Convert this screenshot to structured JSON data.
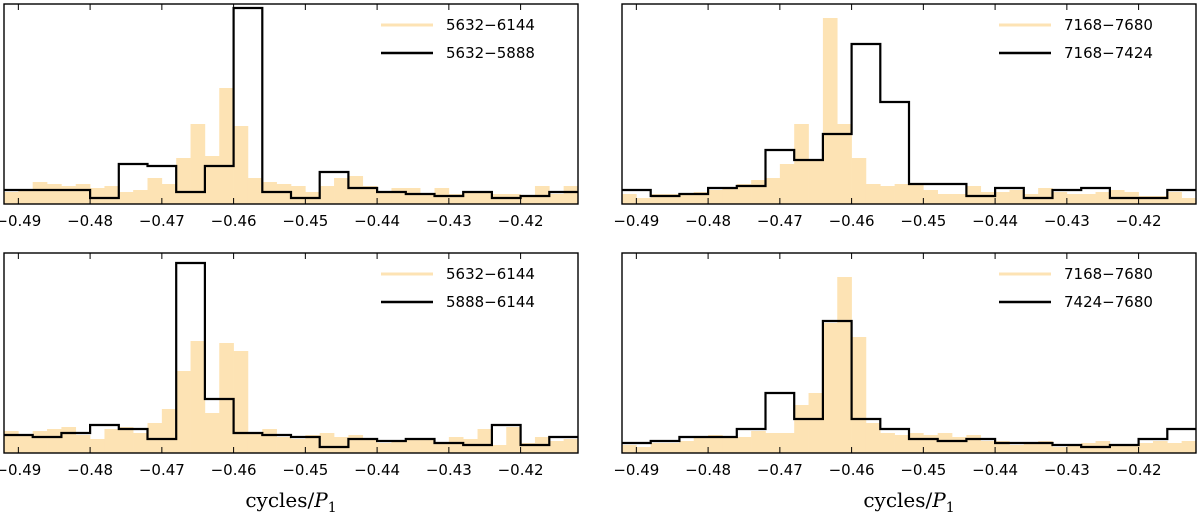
{
  "figure": {
    "x_axis_label": {
      "text": "cycles/",
      "symbol": "P",
      "subscript": "1"
    }
  },
  "chart_data": [
    {
      "type": "histogram",
      "panel": "top-left",
      "xlim": [
        -0.492,
        -0.412
      ],
      "ylim": [
        0,
        1
      ],
      "xticks": [
        -0.49,
        -0.48,
        -0.47,
        -0.46,
        -0.45,
        -0.44,
        -0.43,
        -0.42
      ],
      "xtick_labels": [
        "−0.49",
        "−0.48",
        "−0.47",
        "−0.46",
        "−0.45",
        "−0.44",
        "−0.43",
        "−0.42"
      ],
      "show_xlabel": false,
      "legend_position": "top-right",
      "series": [
        {
          "name": "5632−6144",
          "style": "filled",
          "color": "#fde3b4",
          "bin_start": -0.492,
          "bin_width": 0.002,
          "values": [
            0.06,
            0.07,
            0.11,
            0.1,
            0.09,
            0.1,
            0.08,
            0.09,
            0.06,
            0.07,
            0.13,
            0.1,
            0.23,
            0.4,
            0.24,
            0.58,
            0.39,
            0.13,
            0.11,
            0.1,
            0.09,
            0.06,
            0.09,
            0.13,
            0.14,
            0.09,
            0.06,
            0.08,
            0.08,
            0.05,
            0.08,
            0.05,
            0.06,
            0.06,
            0.05,
            0.05,
            0.04,
            0.09,
            0.05,
            0.09
          ]
        },
        {
          "name": "5632−5888",
          "style": "step",
          "color": "#000000",
          "bin_start": -0.492,
          "bin_width": 0.004,
          "values": [
            0.07,
            0.07,
            0.07,
            0.03,
            0.2,
            0.19,
            0.06,
            0.19,
            0.98,
            0.06,
            0.03,
            0.16,
            0.08,
            0.06,
            0.05,
            0.04,
            0.06,
            0.03,
            0.04,
            0.06
          ]
        }
      ]
    },
    {
      "type": "histogram",
      "panel": "top-right",
      "xlim": [
        -0.492,
        -0.412
      ],
      "ylim": [
        0,
        1
      ],
      "xticks": [
        -0.49,
        -0.48,
        -0.47,
        -0.46,
        -0.45,
        -0.44,
        -0.43,
        -0.42
      ],
      "xtick_labels": [
        "−0.49",
        "−0.48",
        "−0.47",
        "−0.46",
        "−0.45",
        "−0.44",
        "−0.43",
        "−0.42"
      ],
      "show_xlabel": false,
      "legend_position": "top-right",
      "series": [
        {
          "name": "7168−7680",
          "style": "filled",
          "color": "#fde3b4",
          "bin_start": -0.492,
          "bin_width": 0.002,
          "values": [
            0.05,
            0.03,
            0.05,
            0.05,
            0.05,
            0.06,
            0.07,
            0.08,
            0.1,
            0.12,
            0.13,
            0.2,
            0.4,
            0.22,
            0.93,
            0.4,
            0.23,
            0.1,
            0.09,
            0.1,
            0.1,
            0.07,
            0.05,
            0.05,
            0.09,
            0.06,
            0.06,
            0.07,
            0.05,
            0.08,
            0.06,
            0.05,
            0.05,
            0.06,
            0.07,
            0.06,
            0.04,
            0.04,
            0.06,
            0.03
          ]
        },
        {
          "name": "7168−7424",
          "style": "step",
          "color": "#000000",
          "bin_start": -0.492,
          "bin_width": 0.004,
          "values": [
            0.07,
            0.04,
            0.05,
            0.08,
            0.09,
            0.27,
            0.22,
            0.35,
            0.8,
            0.51,
            0.1,
            0.1,
            0.04,
            0.08,
            0.03,
            0.07,
            0.08,
            0.03,
            0.03,
            0.07
          ]
        }
      ]
    },
    {
      "type": "histogram",
      "panel": "bottom-left",
      "xlim": [
        -0.492,
        -0.412
      ],
      "ylim": [
        0,
        1
      ],
      "xticks": [
        -0.49,
        -0.48,
        -0.47,
        -0.46,
        -0.45,
        -0.44,
        -0.43,
        -0.42
      ],
      "xtick_labels": [
        "−0.49",
        "−0.48",
        "−0.47",
        "−0.46",
        "−0.45",
        "−0.44",
        "−0.43",
        "−0.42"
      ],
      "show_xlabel": true,
      "legend_position": "top-right",
      "series": [
        {
          "name": "5632−6144",
          "style": "filled",
          "color": "#fde3b4",
          "bin_start": -0.492,
          "bin_width": 0.002,
          "values": [
            0.11,
            0.09,
            0.11,
            0.12,
            0.13,
            0.09,
            0.07,
            0.12,
            0.13,
            0.1,
            0.15,
            0.22,
            0.41,
            0.56,
            0.2,
            0.55,
            0.51,
            0.1,
            0.12,
            0.08,
            0.07,
            0.09,
            0.1,
            0.08,
            0.09,
            0.07,
            0.05,
            0.06,
            0.07,
            0.07,
            0.05,
            0.08,
            0.07,
            0.12,
            0.04,
            0.13,
            0.05,
            0.08,
            0.06,
            0.07
          ]
        },
        {
          "name": "5888−6144",
          "style": "step",
          "color": "#000000",
          "bin_start": -0.492,
          "bin_width": 0.004,
          "values": [
            0.09,
            0.08,
            0.1,
            0.14,
            0.12,
            0.07,
            0.95,
            0.27,
            0.1,
            0.09,
            0.08,
            0.03,
            0.07,
            0.06,
            0.07,
            0.05,
            0.04,
            0.14,
            0.04,
            0.08
          ]
        }
      ]
    },
    {
      "type": "histogram",
      "panel": "bottom-right",
      "xlim": [
        -0.492,
        -0.412
      ],
      "ylim": [
        0,
        1
      ],
      "xticks": [
        -0.49,
        -0.48,
        -0.47,
        -0.46,
        -0.45,
        -0.44,
        -0.43,
        -0.42
      ],
      "xtick_labels": [
        "−0.49",
        "−0.48",
        "−0.47",
        "−0.46",
        "−0.45",
        "−0.44",
        "−0.43",
        "−0.42"
      ],
      "show_xlabel": true,
      "legend_position": "top-right",
      "series": [
        {
          "name": "7168−7680",
          "style": "filled",
          "color": "#fde3b4",
          "bin_start": -0.492,
          "bin_width": 0.002,
          "values": [
            0.04,
            0.03,
            0.05,
            0.05,
            0.06,
            0.08,
            0.09,
            0.08,
            0.08,
            0.11,
            0.1,
            0.1,
            0.24,
            0.3,
            0.65,
            0.88,
            0.58,
            0.15,
            0.1,
            0.09,
            0.1,
            0.09,
            0.1,
            0.08,
            0.09,
            0.06,
            0.06,
            0.04,
            0.05,
            0.06,
            0.03,
            0.04,
            0.05,
            0.06,
            0.04,
            0.04,
            0.05,
            0.06,
            0.05,
            0.06
          ]
        },
        {
          "name": "7424−7680",
          "style": "step",
          "color": "#000000",
          "bin_start": -0.492,
          "bin_width": 0.004,
          "values": [
            0.05,
            0.06,
            0.08,
            0.08,
            0.12,
            0.3,
            0.17,
            0.66,
            0.17,
            0.12,
            0.07,
            0.06,
            0.07,
            0.05,
            0.05,
            0.04,
            0.03,
            0.04,
            0.07,
            0.12
          ]
        }
      ]
    }
  ]
}
